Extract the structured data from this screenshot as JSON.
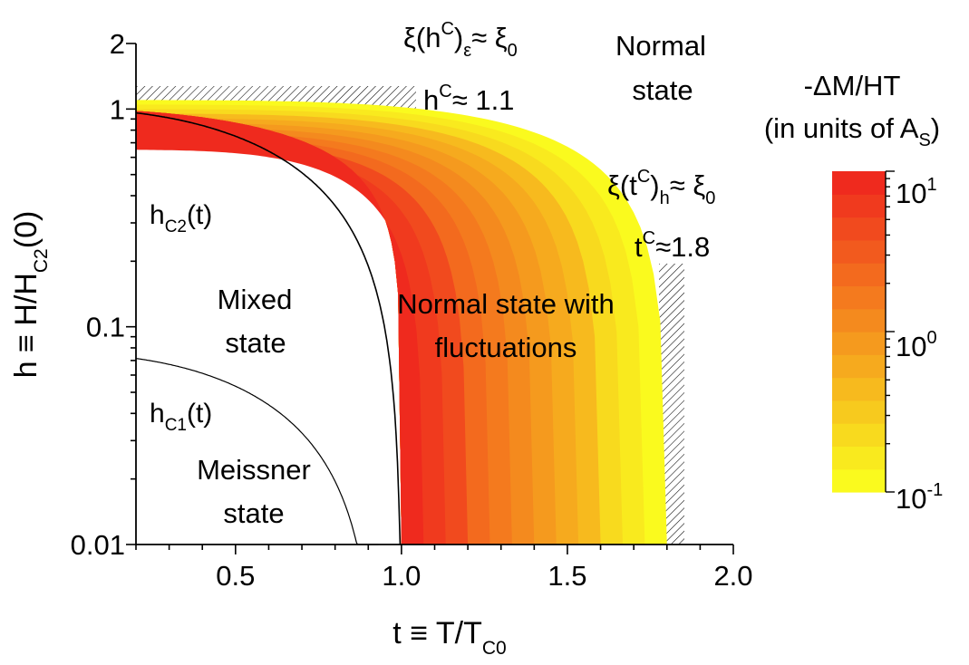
{
  "chart_data": {
    "type": "heatmap",
    "title": "",
    "xlabel": {
      "main": "t ≡ T/T",
      "sub": "C0"
    },
    "ylabel": {
      "main": "h ≡ H/H",
      "sub": "C2",
      "tail": "(0)"
    },
    "x_range": [
      0.2,
      2.0
    ],
    "y_range": [
      0.01,
      2
    ],
    "y_scale": "log",
    "x_ticks": [
      "0.5",
      "1.0",
      "1.5",
      "2.0"
    ],
    "x_tick_values": [
      0.5,
      1.0,
      1.5,
      2.0
    ],
    "y_ticks": [
      "0.01",
      "0.1",
      "1",
      "2"
    ],
    "y_tick_values": [
      0.01,
      0.1,
      1,
      2
    ],
    "grid": false,
    "curves": [
      {
        "name": "hC2",
        "label": {
          "main": "h",
          "sub": "C2",
          "tail": "(t)"
        },
        "formula": "h = 1 - t^2",
        "t_range": [
          0.2,
          1.0
        ]
      },
      {
        "name": "hC1",
        "label": {
          "main": "h",
          "sub": "C1",
          "tail": "(t)"
        },
        "formula": "h = 0.075 (1 - (t/0.93)^2)",
        "t_range": [
          0.2,
          0.93
        ]
      }
    ],
    "fluctuation_region": {
      "t_max": 1.8,
      "h_max": 1.1,
      "levels": 12
    },
    "cutoffs": {
      "h_cutoff": {
        "value": 1.1,
        "t_range": [
          0.2,
          0.37
        ]
      },
      "t_cutoff": {
        "value": 1.8,
        "h_range": [
          0.01,
          0.2
        ]
      }
    },
    "colorbar": {
      "title_line1": "-ΔM/HT",
      "title_line2": "(in units of A",
      "title_sub": "S",
      "title_close": ")",
      "ticks": [
        {
          "base": "10",
          "exp": "1"
        },
        {
          "base": "10",
          "exp": "0"
        },
        {
          "base": "10",
          "exp": "-1"
        }
      ],
      "tick_values": [
        10,
        1,
        0.1
      ],
      "colors": [
        "#fafa1e",
        "#f9ea1e",
        "#f8da1e",
        "#f7ca1e",
        "#f7ba1e",
        "#f6aa1e",
        "#f59a1e",
        "#f48a1e",
        "#f47a1e",
        "#f36a1e",
        "#f25a1e",
        "#f14a1e",
        "#f03a1e",
        "#ef2a1e"
      ]
    },
    "annotations": {
      "xi_h": {
        "xi": "ξ(h",
        "sup": "C",
        "paren": ")",
        "sub": "ε",
        "approx": "≈ ξ",
        "sub2": "0"
      },
      "hc_value": {
        "h": "h",
        "sup": "C",
        "rest": "≈ 1.1"
      },
      "xi_t": {
        "xi": "ξ(t",
        "sup": "C",
        "paren": ")",
        "sub": "h",
        "approx": "≈ ξ",
        "sub2": "0"
      },
      "tc_value": {
        "t": "t",
        "sup": "C",
        "rest": "≈1.8"
      },
      "normal_state": [
        "Normal",
        "state"
      ],
      "fluct_state": [
        "Normal state with",
        "fluctuations"
      ],
      "mixed_state": [
        "Mixed",
        "state"
      ],
      "meissner_state": [
        "Meissner",
        "state"
      ]
    }
  }
}
